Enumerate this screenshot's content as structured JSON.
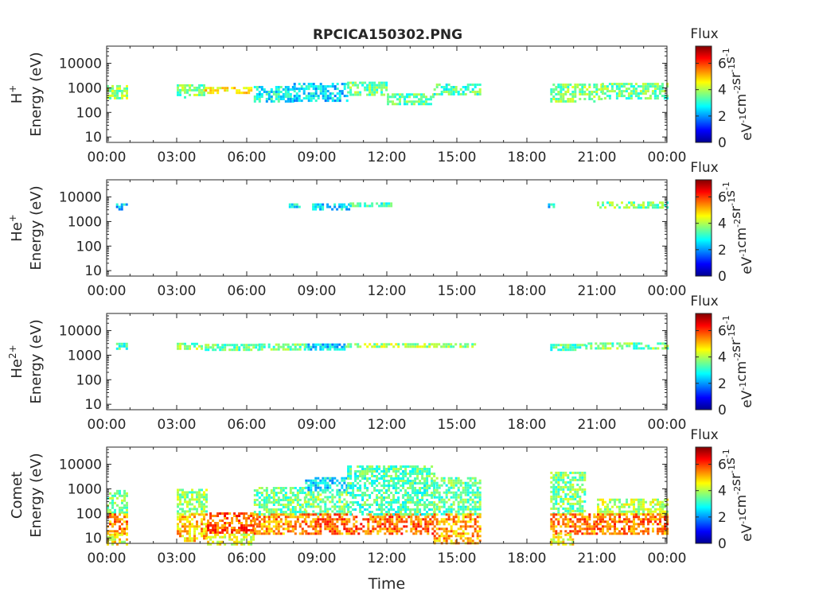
{
  "title": "RPCICA150302.PNG",
  "colors": {
    "colormap": [
      "#00008f",
      "#0000ff",
      "#00ffff",
      "#ffff00",
      "#ff0000",
      "#800000"
    ],
    "axis": "#262626",
    "background": "#ffffff"
  },
  "chart_data": {
    "type": "heatmap",
    "title": "RPCICA150302.PNG",
    "xlabel": "Time",
    "x_ticks": [
      "00:00",
      "03:00",
      "06:00",
      "09:00",
      "12:00",
      "15:00",
      "18:00",
      "21:00",
      "00:00"
    ],
    "x_range_hours": [
      0,
      24
    ],
    "y_scale": "log",
    "y_ticks": [
      10,
      100,
      1000,
      10000
    ],
    "y_tick_labels": [
      "10",
      "100",
      "1000",
      "10000"
    ],
    "colorbar": {
      "title": "Flux",
      "label": "eV-1cm-2sr-1s-1",
      "range": [
        0,
        7.3
      ],
      "ticks": [
        0,
        2,
        4,
        6
      ]
    },
    "panels": [
      {
        "species": "H+",
        "species_base": "H",
        "species_sup": "+",
        "ylabel": "Energy (eV)",
        "segments": [
          {
            "t": [
              0.0,
              0.9
            ],
            "e": [
              400,
              1300
            ],
            "flux": 3.8
          },
          {
            "t": [
              3.0,
              4.2
            ],
            "e": [
              400,
              1400
            ],
            "flux": 3.6
          },
          {
            "t": [
              4.2,
              6.3
            ],
            "e": [
              600,
              1100
            ],
            "flux": 4.6
          },
          {
            "t": [
              6.3,
              8.0
            ],
            "e": [
              300,
              1200
            ],
            "flux": 2.8
          },
          {
            "t": [
              8.0,
              10.3
            ],
            "e": [
              300,
              1600
            ],
            "flux": 2.5
          },
          {
            "t": [
              10.3,
              12.0
            ],
            "e": [
              500,
              1800
            ],
            "flux": 3.5
          },
          {
            "t": [
              12.0,
              14.0
            ],
            "e": [
              200,
              600
            ],
            "flux": 3.4
          },
          {
            "t": [
              14.0,
              16.0
            ],
            "e": [
              500,
              1500
            ],
            "flux": 3.3
          },
          {
            "t": [
              19.0,
              21.2
            ],
            "e": [
              300,
              1500
            ],
            "flux": 3.7
          },
          {
            "t": [
              21.2,
              24.0
            ],
            "e": [
              400,
              1600
            ],
            "flux": 3.5
          }
        ]
      },
      {
        "species": "He+",
        "species_base": "He",
        "species_sup": "+",
        "ylabel": "Energy (eV)",
        "segments": [
          {
            "t": [
              0.4,
              0.9
            ],
            "e": [
              3500,
              5500
            ],
            "flux": 2.4
          },
          {
            "t": [
              7.8,
              8.3
            ],
            "e": [
              4000,
              5500
            ],
            "flux": 2.8
          },
          {
            "t": [
              8.8,
              10.4
            ],
            "e": [
              3500,
              5500
            ],
            "flux": 2.6
          },
          {
            "t": [
              10.4,
              12.2
            ],
            "e": [
              4000,
              6000
            ],
            "flux": 3.3
          },
          {
            "t": [
              18.9,
              19.2
            ],
            "e": [
              4000,
              5500
            ],
            "flux": 2.6
          },
          {
            "t": [
              21.0,
              24.0
            ],
            "e": [
              3500,
              6500
            ],
            "flux": 3.6
          }
        ]
      },
      {
        "species": "He2+",
        "species_base": "He",
        "species_sup": "2+",
        "ylabel": "Energy (eV)",
        "segments": [
          {
            "t": [
              0.3,
              0.9
            ],
            "e": [
              1800,
              3200
            ],
            "flux": 3.2
          },
          {
            "t": [
              3.0,
              4.2
            ],
            "e": [
              2000,
              3200
            ],
            "flux": 3.7
          },
          {
            "t": [
              4.2,
              6.5
            ],
            "e": [
              1700,
              2900
            ],
            "flux": 3.4
          },
          {
            "t": [
              6.5,
              8.5
            ],
            "e": [
              1900,
              3000
            ],
            "flux": 3.5
          },
          {
            "t": [
              8.5,
              10.2
            ],
            "e": [
              1800,
              3000
            ],
            "flux": 2.5
          },
          {
            "t": [
              10.2,
              15.8
            ],
            "e": [
              2000,
              3100
            ],
            "flux": 3.9
          },
          {
            "t": [
              19.0,
              20.5
            ],
            "e": [
              1800,
              2900
            ],
            "flux": 3.3
          },
          {
            "t": [
              20.5,
              24.0
            ],
            "e": [
              2000,
              3300
            ],
            "flux": 3.6
          }
        ]
      },
      {
        "species": "Comet",
        "species_base": "Comet",
        "species_sup": "",
        "ylabel": "Energy (eV)",
        "segments": [
          {
            "t": [
              0.0,
              0.9
            ],
            "e": [
              100,
              900
            ],
            "flux": 3.6
          },
          {
            "t": [
              0.0,
              0.9
            ],
            "e": [
              15,
              100
            ],
            "flux": 5.4
          },
          {
            "t": [
              0.0,
              0.9
            ],
            "e": [
              6,
              15
            ],
            "flux": 4.5
          },
          {
            "t": [
              3.0,
              4.3
            ],
            "e": [
              100,
              1000
            ],
            "flux": 3.8
          },
          {
            "t": [
              3.0,
              4.3
            ],
            "e": [
              8,
              100
            ],
            "flux": 5.0
          },
          {
            "t": [
              4.3,
              6.3
            ],
            "e": [
              15,
              110
            ],
            "flux": 5.8
          },
          {
            "t": [
              4.3,
              6.3
            ],
            "e": [
              6,
              15
            ],
            "flux": 4.4
          },
          {
            "t": [
              6.3,
              8.5
            ],
            "e": [
              100,
              1200
            ],
            "flux": 3.5
          },
          {
            "t": [
              6.3,
              8.5
            ],
            "e": [
              15,
              100
            ],
            "flux": 5.3
          },
          {
            "t": [
              8.5,
              10.3
            ],
            "e": [
              800,
              3000
            ],
            "flux": 2.6
          },
          {
            "t": [
              8.5,
              10.3
            ],
            "e": [
              100,
              800
            ],
            "flux": 3.6
          },
          {
            "t": [
              8.5,
              14.0
            ],
            "e": [
              15,
              100
            ],
            "flux": 5.6
          },
          {
            "t": [
              10.3,
              14.0
            ],
            "e": [
              100,
              9000
            ],
            "flux": 3.3
          },
          {
            "t": [
              14.0,
              16.0
            ],
            "e": [
              100,
              3000
            ],
            "flux": 3.4
          },
          {
            "t": [
              14.0,
              16.0
            ],
            "e": [
              6,
              100
            ],
            "flux": 5.2
          },
          {
            "t": [
              19.0,
              20.5
            ],
            "e": [
              100,
              5000
            ],
            "flux": 3.6
          },
          {
            "t": [
              19.0,
              21.0
            ],
            "e": [
              15,
              100
            ],
            "flux": 5.5
          },
          {
            "t": [
              19.0,
              20.0
            ],
            "e": [
              6,
              15
            ],
            "flux": 4.6
          },
          {
            "t": [
              21.0,
              24.0
            ],
            "e": [
              100,
              400
            ],
            "flux": 4.1
          },
          {
            "t": [
              21.0,
              24.0
            ],
            "e": [
              15,
              100
            ],
            "flux": 5.6
          }
        ]
      }
    ]
  }
}
